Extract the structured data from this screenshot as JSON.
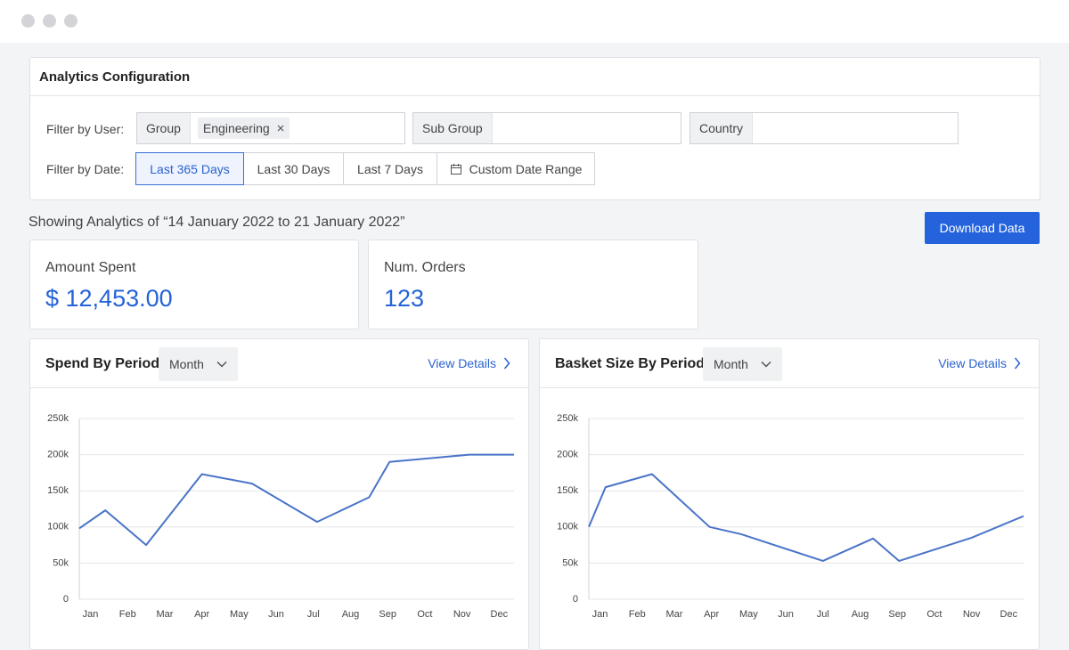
{
  "config": {
    "title": "Analytics Configuration",
    "user_filter": {
      "label": "Filter by User:",
      "fields": [
        {
          "label": "Group",
          "chip": "Engineering"
        },
        {
          "label": "Sub Group"
        },
        {
          "label": "Country"
        }
      ]
    },
    "date_filter": {
      "label": "Filter by Date:",
      "options": [
        "Last 365 Days",
        "Last 30 Days",
        "Last 7 Days",
        "Custom Date Range"
      ],
      "selected": 0
    }
  },
  "summary_text": "Showing Analytics of “14 January 2022 to 21 January 2022”",
  "download_button": "Download Data",
  "stats": [
    {
      "label": "Amount Spent",
      "value": "$ 12,453.00"
    },
    {
      "label": "Num. Orders",
      "value": 123
    }
  ],
  "chart_data": [
    {
      "type": "line",
      "title": "Spend By Period",
      "period": "Month",
      "link": "View Details",
      "x": [
        -0.3,
        0.4,
        1.5,
        3,
        4.35,
        6.1,
        7.5,
        8.05,
        10.2,
        11.4
      ],
      "xlim": [
        -0.3,
        11.4
      ],
      "xticks": [
        {
          "value": 0,
          "label": "Jan"
        },
        {
          "value": 1,
          "label": "Feb"
        },
        {
          "value": 2,
          "label": "Mar"
        },
        {
          "value": 3,
          "label": "Apr"
        },
        {
          "value": 4,
          "label": "May"
        },
        {
          "value": 5,
          "label": "Jun"
        },
        {
          "value": 6,
          "label": "Jul"
        },
        {
          "value": 7,
          "label": "Aug"
        },
        {
          "value": 8,
          "label": "Sep"
        },
        {
          "value": 9,
          "label": "Oct"
        },
        {
          "value": 10,
          "label": "Nov"
        },
        {
          "value": 11,
          "label": "Dec"
        }
      ],
      "ylim": [
        0,
        250000
      ],
      "yticks": [
        0,
        {
          "value": 50000,
          "label": "50k"
        },
        {
          "value": 100000,
          "label": "100k"
        },
        {
          "value": 150000,
          "label": "150k"
        },
        {
          "value": 200000,
          "label": "200k"
        },
        {
          "value": 250000,
          "label": "250k"
        }
      ],
      "grid": true,
      "series": [
        {
          "color": "#4a74c8",
          "values": [
            98000,
            123000,
            75000,
            173000,
            160000,
            107000,
            141000,
            190000,
            200000,
            200000
          ]
        }
      ]
    },
    {
      "type": "line",
      "title": "Basket Size By Period",
      "period": "Month",
      "link": "View Details",
      "x": [
        -0.3,
        0.15,
        1.4,
        2.95,
        3.8,
        6,
        7.35,
        8.05,
        10,
        11.4
      ],
      "xlim": [
        -0.3,
        11.4
      ],
      "xticks": [
        {
          "value": 0,
          "label": "Jan"
        },
        {
          "value": 1,
          "label": "Feb"
        },
        {
          "value": 2,
          "label": "Mar"
        },
        {
          "value": 3,
          "label": "Apr"
        },
        {
          "value": 4,
          "label": "May"
        },
        {
          "value": 5,
          "label": "Jun"
        },
        {
          "value": 6,
          "label": "Jul"
        },
        {
          "value": 7,
          "label": "Aug"
        },
        {
          "value": 8,
          "label": "Sep"
        },
        {
          "value": 9,
          "label": "Oct"
        },
        {
          "value": 10,
          "label": "Nov"
        },
        {
          "value": 11,
          "label": "Dec"
        }
      ],
      "ylim": [
        0,
        250000
      ],
      "yticks": [
        0,
        {
          "value": 50000,
          "label": "50k"
        },
        {
          "value": 100000,
          "label": "100k"
        },
        {
          "value": 150000,
          "label": "150k"
        },
        {
          "value": 200000,
          "label": "200k"
        },
        {
          "value": 250000,
          "label": "250k"
        }
      ],
      "grid": true,
      "series": [
        {
          "color": "#4a74c8",
          "values": [
            100000,
            155000,
            173000,
            100000,
            90000,
            53000,
            84000,
            53000,
            85000,
            115000
          ]
        }
      ]
    }
  ]
}
